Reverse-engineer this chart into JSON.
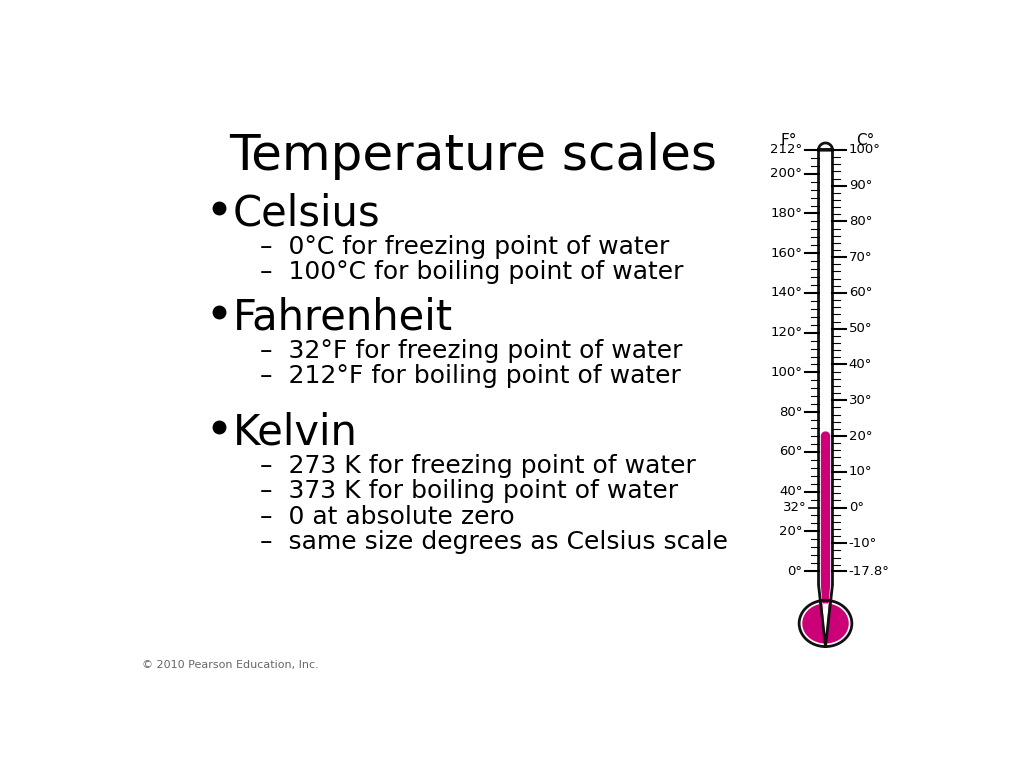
{
  "title": "Temperature scales",
  "title_fontsize": 36,
  "background_color": "#ffffff",
  "text_color": "#000000",
  "thermometer_color": "#cc0077",
  "thermometer_outline": "#111111",
  "copyright": "© 2010 Pearson Education, Inc.",
  "bullets": [
    {
      "label": "Celsius",
      "fontsize": 30,
      "subitems": [
        "0°C for freezing point of water",
        "100°C for boiling point of water"
      ]
    },
    {
      "label": "Fahrenheit",
      "fontsize": 30,
      "subitems": [
        "32°F for freezing point of water",
        "212°F for boiling point of water"
      ]
    },
    {
      "label": "Kelvin",
      "fontsize": 30,
      "subitems": [
        "273 K for freezing point of water",
        "373 K for boiling point of water",
        "0 at absolute zero",
        "same size degrees as Celsius scale"
      ]
    }
  ],
  "sub_fontsize": 18,
  "sub_dash": "–  "
}
